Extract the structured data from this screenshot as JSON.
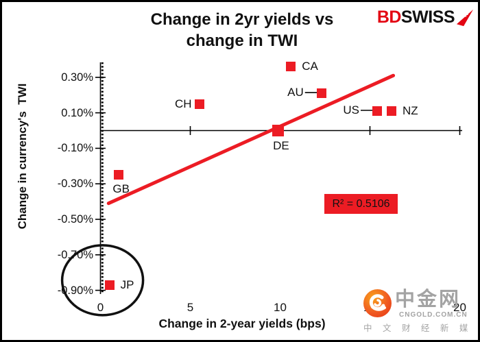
{
  "header": {
    "title_line1": "Change in 2yr yields vs",
    "title_line2": "change in TWI",
    "logo": {
      "bd": "BD",
      "swiss": "SWISS",
      "arrow_icon": "swiss-flag-arrow",
      "bd_color": "#e30613",
      "swiss_color": "#111111"
    }
  },
  "chart_data": {
    "type": "scatter",
    "title": "Change in 2yr yields vs change in TWI",
    "xlabel": "Change in 2-year yields (bps)",
    "ylabel": "Change in currency's  TWI",
    "xlim": [
      0,
      20
    ],
    "ylim": [
      -0.92,
      0.39
    ],
    "x_ticks": [
      0,
      5,
      10,
      15,
      20
    ],
    "y_tick_labels": [
      "0.30%",
      "0.10%",
      "-0.10%",
      "-0.30%",
      "-0.50%",
      "-0.70%",
      "-0.90%"
    ],
    "y_tick_values": [
      0.3,
      0.1,
      -0.1,
      -0.3,
      -0.5,
      -0.7,
      -0.9
    ],
    "grid": false,
    "points": [
      {
        "label": "CA",
        "x": 10.6,
        "y": 0.36,
        "label_side": "right"
      },
      {
        "label": "AU",
        "x": 12.3,
        "y": 0.21,
        "label_side": "left-dash"
      },
      {
        "label": "US",
        "x": 15.4,
        "y": 0.11,
        "label_side": "left-dash"
      },
      {
        "label": "NZ",
        "x": 16.2,
        "y": 0.11,
        "label_side": "right"
      },
      {
        "label": "CH",
        "x": 5.5,
        "y": 0.15,
        "label_side": "left"
      },
      {
        "label": "DE",
        "x": 9.9,
        "y": 0.0,
        "label_side": "below",
        "size": 17
      },
      {
        "label": "GB",
        "x": 1.0,
        "y": -0.25,
        "label_side": "below"
      },
      {
        "label": "JP",
        "x": 0.5,
        "y": -0.87,
        "label_side": "right",
        "circled": true
      }
    ],
    "trendline": {
      "x1": 0.45,
      "y1": -0.41,
      "x2": 16.3,
      "y2": 0.31
    },
    "r2_label": "R² = 0.5106",
    "marker_color": "#ec1c24",
    "trend_color": "#ec1c24",
    "r2_bg_color": "#ec1c24",
    "annotation": "circle-around-JP"
  },
  "watermark": {
    "logo_icon": "cngold-cloud-logo",
    "name_cn": "中金网",
    "domain": "CNGOLD.COM.CN",
    "tagline": "中文财经新媒体",
    "gray_color": "#a3a3a3"
  }
}
